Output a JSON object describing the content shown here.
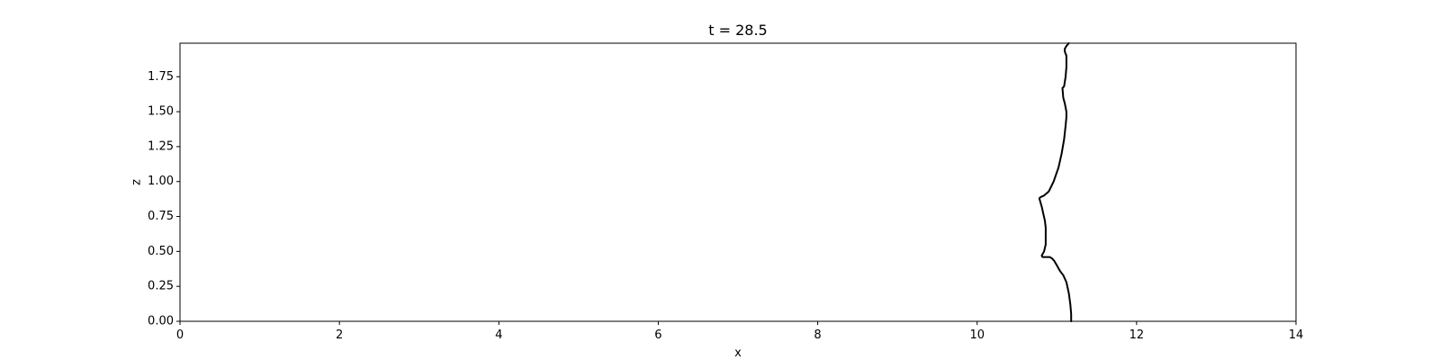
{
  "chart_data": {
    "type": "line",
    "title": "t = 28.5",
    "xlabel": "x",
    "ylabel": "z",
    "xlim": [
      0,
      14
    ],
    "ylim": [
      0,
      1.99
    ],
    "x_ticks": [
      0,
      2,
      4,
      6,
      8,
      10,
      12,
      14
    ],
    "x_tick_labels": [
      "0",
      "2",
      "4",
      "6",
      "8",
      "10",
      "12",
      "14"
    ],
    "y_ticks": [
      0.0,
      0.25,
      0.5,
      0.75,
      1.0,
      1.25,
      1.5,
      1.75
    ],
    "y_tick_labels": [
      "0.00",
      "0.25",
      "0.50",
      "0.75",
      "1.00",
      "1.25",
      "1.50",
      "1.75"
    ],
    "grid": false,
    "legend": "none",
    "series": [
      {
        "color": "#000000",
        "x": [
          11.18,
          11.18,
          11.17,
          11.15,
          11.12,
          11.08,
          11.04,
          11.0,
          10.97,
          10.94,
          10.91,
          10.87,
          10.84,
          10.82,
          10.81,
          10.82,
          10.84,
          10.86,
          10.86,
          10.86,
          10.85,
          10.83,
          10.81,
          10.79,
          10.78,
          10.8,
          10.84,
          10.9,
          10.96,
          11.02,
          11.06,
          11.09,
          11.11,
          11.12,
          11.12,
          11.1,
          11.08,
          11.07,
          11.09,
          11.11,
          11.12,
          11.12,
          11.1,
          11.1,
          11.12,
          11.15
        ],
        "y": [
          0.0,
          0.05,
          0.12,
          0.2,
          0.28,
          0.33,
          0.36,
          0.4,
          0.43,
          0.45,
          0.46,
          0.46,
          0.46,
          0.46,
          0.47,
          0.48,
          0.5,
          0.55,
          0.6,
          0.67,
          0.72,
          0.77,
          0.82,
          0.86,
          0.88,
          0.89,
          0.9,
          0.93,
          1.0,
          1.1,
          1.2,
          1.3,
          1.4,
          1.46,
          1.5,
          1.56,
          1.6,
          1.67,
          1.68,
          1.75,
          1.82,
          1.9,
          1.93,
          1.95,
          1.97,
          1.99
        ]
      }
    ]
  }
}
